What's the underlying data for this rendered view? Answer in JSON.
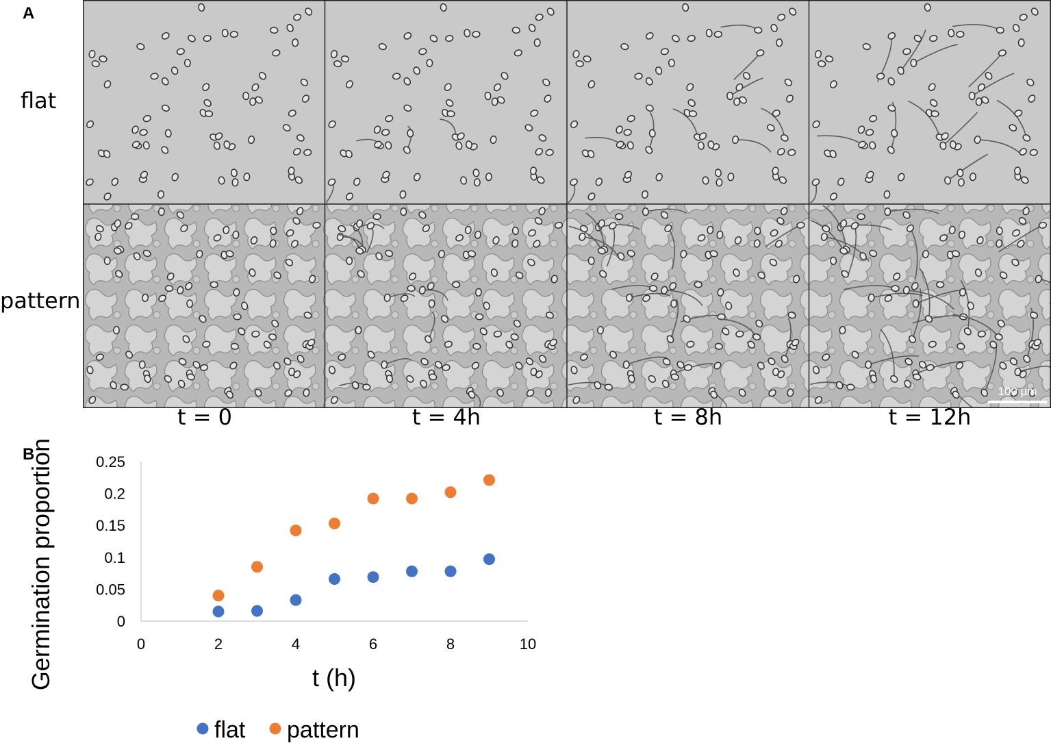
{
  "panel_a": {
    "letter": "A",
    "rows": [
      "flat",
      "pattern"
    ],
    "times": [
      "t = 0",
      "t = 4h",
      "t = 8h",
      "t = 12h"
    ],
    "scale_bar": "100 µm"
  },
  "panel_b": {
    "letter": "B"
  },
  "chart_data": {
    "type": "scatter",
    "xlabel": "t (h)",
    "ylabel": "Germination proportions",
    "xlim": [
      0,
      10
    ],
    "ylim": [
      0,
      0.25
    ],
    "xticks": [
      0,
      2,
      4,
      6,
      8,
      10
    ],
    "yticks": [
      0,
      0.05,
      0.1,
      0.15,
      0.2,
      0.25
    ],
    "ytick_labels": [
      "0",
      "0.05",
      "0.1",
      "0.15",
      "0.2",
      "0.25"
    ],
    "grid": false,
    "legend_position": "bottom",
    "series": [
      {
        "name": "flat",
        "color": "#4472c4",
        "x": [
          2,
          3,
          4,
          5,
          6,
          7,
          8,
          9
        ],
        "y": [
          0.015,
          0.016,
          0.033,
          0.066,
          0.069,
          0.078,
          0.078,
          0.097
        ]
      },
      {
        "name": "pattern",
        "color": "#ed7d31",
        "x": [
          2,
          3,
          4,
          5,
          6,
          7,
          8,
          9
        ],
        "y": [
          0.04,
          0.085,
          0.142,
          0.153,
          0.192,
          0.192,
          0.202,
          0.221
        ]
      }
    ]
  }
}
